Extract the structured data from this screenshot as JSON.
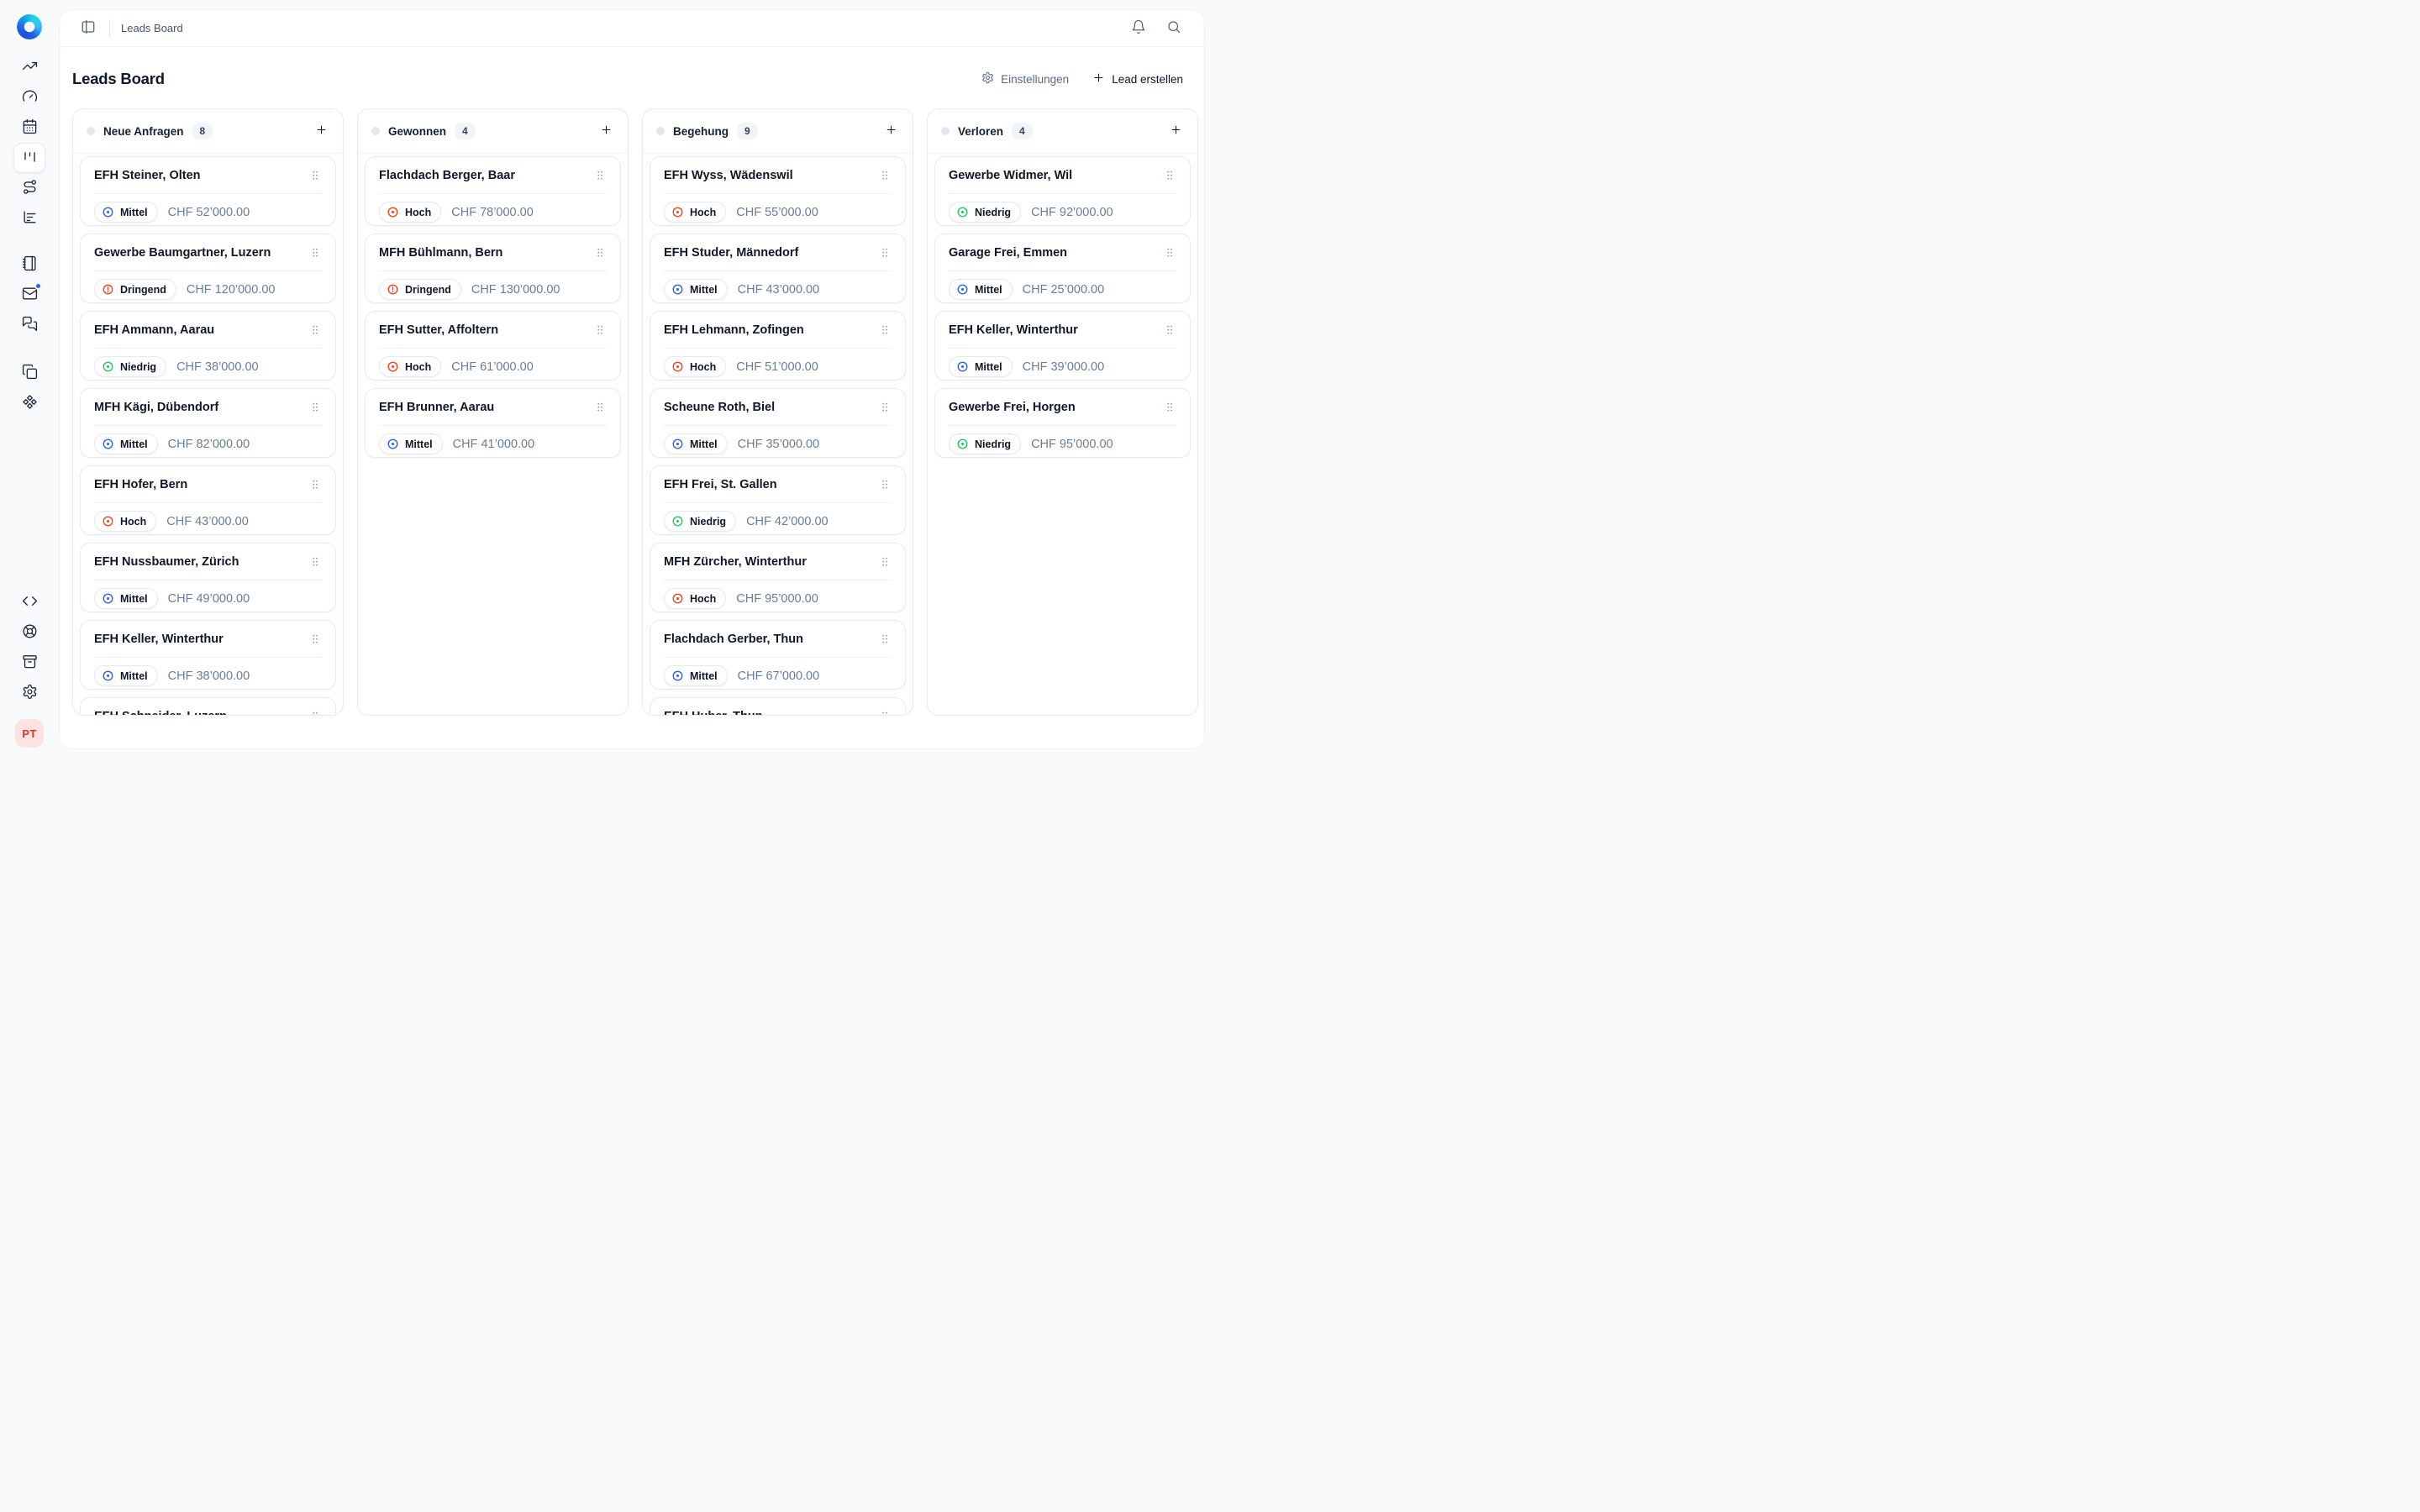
{
  "topbar": {
    "breadcrumb": "Leads Board",
    "icons": [
      "panel-left",
      "bell",
      "search"
    ]
  },
  "sidebar": {
    "logo": "blue-swirl-logo",
    "avatar_initials": "PT",
    "active_item": "kanban",
    "mail_notification_dot": true,
    "items": [
      "trending-up",
      "gauge",
      "calendar",
      "kanban",
      "route",
      "chart-bar",
      "notebook",
      "mail",
      "messages",
      "copy",
      "component",
      "code",
      "life-buoy",
      "archive",
      "settings"
    ]
  },
  "page": {
    "title": "Leads Board",
    "settings_label": "Einstellungen",
    "create_label": "Lead erstellen"
  },
  "colors": {
    "accent_blue": "#2563eb",
    "green": "#22c55e",
    "red": "#f1431b",
    "column_dot": "#e2e8f0",
    "avatar_bg": "#fee2e2",
    "avatar_text": "#e23528"
  },
  "priorities": {
    "Mittel": {
      "color": "#2563eb",
      "icon": "circle-dot"
    },
    "Hoch": {
      "color": "#f1431b",
      "icon": "circle-dot"
    },
    "Dringend": {
      "color": "#f1431b",
      "icon": "alert-circle"
    },
    "Niedrig": {
      "color": "#22c55e",
      "icon": "circle-dot"
    }
  },
  "board": {
    "columns": [
      {
        "title": "Neue Anfragen",
        "count": "8",
        "cards": [
          {
            "title": "EFH Steiner, Olten",
            "priority": "Mittel",
            "amount": "CHF 52’000.00"
          },
          {
            "title": "Gewerbe Baumgartner, Luzern",
            "priority": "Dringend",
            "amount": "CHF 120’000.00"
          },
          {
            "title": "EFH Ammann, Aarau",
            "priority": "Niedrig",
            "amount": "CHF 38’000.00"
          },
          {
            "title": "MFH Kägi, Dübendorf",
            "priority": "Mittel",
            "amount": "CHF 82’000.00"
          },
          {
            "title": "EFH Hofer, Bern",
            "priority": "Hoch",
            "amount": "CHF 43’000.00"
          },
          {
            "title": "EFH Nussbaumer, Zürich",
            "priority": "Mittel",
            "amount": "CHF 49’000.00"
          },
          {
            "title": "EFH Keller, Winterthur",
            "priority": "Mittel",
            "amount": "CHF 38’000.00"
          },
          {
            "title": "EFH Schneider, Luzern",
            "priority": null,
            "amount": null
          }
        ]
      },
      {
        "title": "Gewonnen",
        "count": "4",
        "cards": [
          {
            "title": "Flachdach Berger, Baar",
            "priority": "Hoch",
            "amount": "CHF 78’000.00"
          },
          {
            "title": "MFH Bühlmann, Bern",
            "priority": "Dringend",
            "amount": "CHF 130’000.00"
          },
          {
            "title": "EFH Sutter, Affoltern",
            "priority": "Hoch",
            "amount": "CHF 61’000.00"
          },
          {
            "title": "EFH Brunner, Aarau",
            "priority": "Mittel",
            "amount": "CHF 41’000.00"
          }
        ]
      },
      {
        "title": "Begehung",
        "count": "9",
        "cards": [
          {
            "title": "EFH Wyss, Wädenswil",
            "priority": "Hoch",
            "amount": "CHF 55’000.00"
          },
          {
            "title": "EFH Studer, Männedorf",
            "priority": "Mittel",
            "amount": "CHF 43’000.00"
          },
          {
            "title": "EFH Lehmann, Zofingen",
            "priority": "Hoch",
            "amount": "CHF 51’000.00"
          },
          {
            "title": "Scheune Roth, Biel",
            "priority": "Mittel",
            "amount": "CHF 35’000.00"
          },
          {
            "title": "EFH Frei, St. Gallen",
            "priority": "Niedrig",
            "amount": "CHF 42’000.00"
          },
          {
            "title": "MFH Zürcher, Winterthur",
            "priority": "Hoch",
            "amount": "CHF 95’000.00"
          },
          {
            "title": "Flachdach Gerber, Thun",
            "priority": "Mittel",
            "amount": "CHF 67’000.00"
          },
          {
            "title": "EFH Huber, Thun",
            "priority": null,
            "amount": null
          }
        ]
      },
      {
        "title": "Verloren",
        "count": "4",
        "cards": [
          {
            "title": "Gewerbe Widmer, Wil",
            "priority": "Niedrig",
            "amount": "CHF 92’000.00"
          },
          {
            "title": "Garage Frei, Emmen",
            "priority": "Mittel",
            "amount": "CHF 25’000.00"
          },
          {
            "title": "EFH Keller, Winterthur",
            "priority": "Mittel",
            "amount": "CHF 39’000.00"
          },
          {
            "title": "Gewerbe Frei, Horgen",
            "priority": "Niedrig",
            "amount": "CHF 95’000.00"
          }
        ]
      }
    ]
  }
}
